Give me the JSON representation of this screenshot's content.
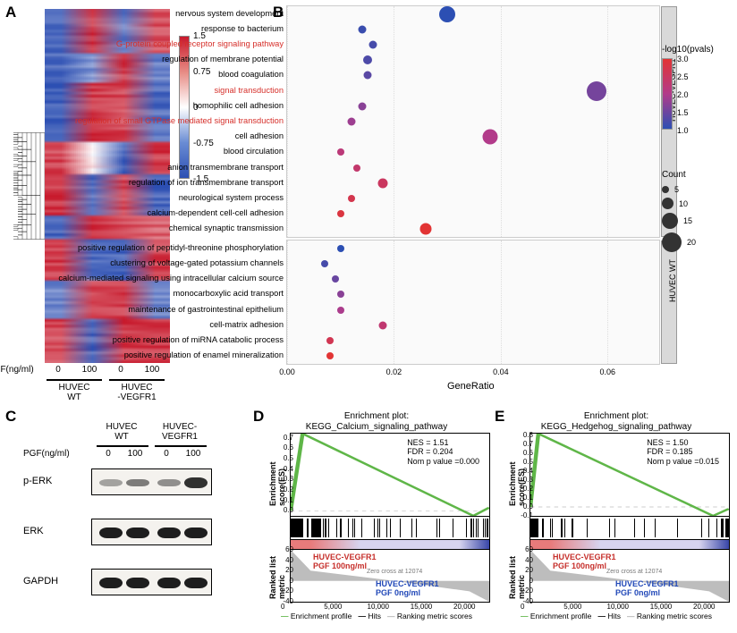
{
  "panels": {
    "A": "A",
    "B": "B",
    "C": "C",
    "D": "D",
    "E": "E"
  },
  "heatmap": {
    "type": "heatmap",
    "rows": 120,
    "columns": 4,
    "column_groups": [
      "HUVEC\nWT",
      "HUVEC\n-VEGFR1"
    ],
    "column_sub": [
      "0",
      "100",
      "0",
      "100"
    ],
    "x_label_prefix": "PGF(ng/ml)",
    "color_low": "#2c4fb3",
    "color_mid": "#ffffff",
    "color_high": "#c8192c",
    "legend_ticks": [
      "-1.5",
      "-0.75",
      "0",
      "0.75",
      "1.5"
    ],
    "blocks": [
      {
        "rows": [
          0,
          15
        ],
        "vals": [
          -1.2,
          1.3,
          -1.1,
          1.1
        ]
      },
      {
        "rows": [
          15,
          25
        ],
        "vals": [
          -1.3,
          -0.9,
          1.3,
          -1.1
        ]
      },
      {
        "rows": [
          25,
          45
        ],
        "vals": [
          -1.3,
          1.3,
          1.2,
          -1.2
        ]
      },
      {
        "rows": [
          45,
          56
        ],
        "vals": [
          1.2,
          0.1,
          -1.3,
          1.3
        ]
      },
      {
        "rows": [
          56,
          70
        ],
        "vals": [
          1.3,
          -1.2,
          1.2,
          -1.3
        ]
      },
      {
        "rows": [
          70,
          78
        ],
        "vals": [
          -1.3,
          1.3,
          1.2,
          1.0
        ]
      },
      {
        "rows": [
          78,
          92
        ],
        "vals": [
          1.3,
          -1.2,
          -1.3,
          1.2
        ]
      },
      {
        "rows": [
          92,
          105
        ],
        "vals": [
          -1.0,
          1.2,
          1.3,
          -1.0
        ]
      },
      {
        "rows": [
          105,
          120
        ],
        "vals": [
          1.2,
          -1.3,
          1.3,
          1.3
        ]
      }
    ],
    "dendro_seed": 7
  },
  "dotplot": {
    "type": "dotplot",
    "xlim": [
      0.0,
      0.07
    ],
    "xticks": [
      0.0,
      0.02,
      0.04,
      0.06
    ],
    "xlabel": "GeneRatio",
    "color_scale": {
      "low": "#2c4fb3",
      "mid": "#b23b8a",
      "high": "#e23434",
      "title": "-log10(pvals)",
      "ticks": [
        "1.0",
        "1.5",
        "2.0",
        "2.5",
        "3.0"
      ]
    },
    "count_legend": {
      "title": "Count",
      "values": [
        5,
        10,
        15,
        20
      ],
      "radii": [
        4,
        6.5,
        9,
        11
      ]
    },
    "groups": [
      {
        "name": "HUVEC-VEGFR1",
        "terms": [
          {
            "label": "nervous system development",
            "x": 0.03,
            "count": 15,
            "pval": 1.0,
            "hl": false
          },
          {
            "label": "response to bacterium",
            "x": 0.014,
            "count": 6,
            "pval": 1.1,
            "hl": false
          },
          {
            "label": "G-protein coupled receptor signaling pathway",
            "x": 0.016,
            "count": 6,
            "pval": 1.2,
            "hl": true
          },
          {
            "label": "regulation of membrane potential",
            "x": 0.015,
            "count": 7,
            "pval": 1.25,
            "hl": false
          },
          {
            "label": "blood coagulation",
            "x": 0.015,
            "count": 6,
            "pval": 1.35,
            "hl": false
          },
          {
            "label": "signal transduction",
            "x": 0.058,
            "count": 20,
            "pval": 1.55,
            "hl": true
          },
          {
            "label": "homophilic cell adhesion",
            "x": 0.014,
            "count": 6,
            "pval": 1.7,
            "hl": false
          },
          {
            "label": "regulation of small GTPase mediated signal transduction",
            "x": 0.012,
            "count": 6,
            "pval": 1.85,
            "hl": true
          },
          {
            "label": "cell adhesion",
            "x": 0.038,
            "count": 14,
            "pval": 2.0,
            "hl": false
          },
          {
            "label": "blood circulation",
            "x": 0.01,
            "count": 5,
            "pval": 2.2,
            "hl": false
          },
          {
            "label": "anion transmembrane transport",
            "x": 0.013,
            "count": 5,
            "pval": 2.35,
            "hl": false
          },
          {
            "label": "regulation of ion transmembrane transport",
            "x": 0.018,
            "count": 8,
            "pval": 2.5,
            "hl": false
          },
          {
            "label": "neurological system process",
            "x": 0.012,
            "count": 5,
            "pval": 2.7,
            "hl": false
          },
          {
            "label": "calcium-dependent cell-cell adhesion",
            "x": 0.01,
            "count": 4,
            "pval": 2.85,
            "hl": false
          },
          {
            "label": "chemical synaptic transmission",
            "x": 0.026,
            "count": 10,
            "pval": 3.0,
            "hl": false
          }
        ]
      },
      {
        "name": "HUVEC WT",
        "terms": [
          {
            "label": "positive regulation of peptidyl-threonine phosphorylation",
            "x": 0.01,
            "count": 4,
            "pval": 1.0,
            "hl": false
          },
          {
            "label": "clustering of voltage-gated potassium channels",
            "x": 0.007,
            "count": 3,
            "pval": 1.2,
            "hl": false
          },
          {
            "label": "calcium-mediated signaling using intracellular calcium source",
            "x": 0.009,
            "count": 4,
            "pval": 1.45,
            "hl": false
          },
          {
            "label": "monocarboxylic acid transport",
            "x": 0.01,
            "count": 4,
            "pval": 1.7,
            "hl": false
          },
          {
            "label": "maintenance of gastrointestinal epithelium",
            "x": 0.01,
            "count": 4,
            "pval": 1.95,
            "hl": false
          },
          {
            "label": "cell-matrix adhesion",
            "x": 0.018,
            "count": 6,
            "pval": 2.3,
            "hl": false
          },
          {
            "label": "positive regulation of miRNA catabolic process",
            "x": 0.008,
            "count": 3,
            "pval": 2.65,
            "hl": false
          },
          {
            "label": "positive regulation of enamel mineralization",
            "x": 0.008,
            "count": 3,
            "pval": 3.0,
            "hl": false
          }
        ]
      }
    ]
  },
  "western": {
    "groups": [
      "HUVEC\nWT",
      "HUVEC-\nVEGFR1"
    ],
    "doses": [
      "0",
      "100",
      "0",
      "100"
    ],
    "dose_label": "PGF(ng/ml)",
    "rows": [
      {
        "name": "p-ERK",
        "lanes": [
          0.25,
          0.45,
          0.35,
          0.85
        ]
      },
      {
        "name": "ERK",
        "lanes": [
          0.95,
          0.95,
          0.95,
          0.95
        ]
      },
      {
        "name": "GAPDH",
        "lanes": [
          0.95,
          0.95,
          0.95,
          0.95
        ]
      }
    ],
    "band_color": "#1a1a1a",
    "box_bg": "#f4f2ee"
  },
  "gsea": {
    "xlim": [
      0,
      23000
    ],
    "xticks": [
      0,
      5000,
      10000,
      15000,
      20000
    ],
    "ylab_top": "Enrichment\nscore(ES)",
    "ylab_bot": "Ranked list\nmetric",
    "legend": {
      "profile": "Enrichment profile",
      "hits": "Hits",
      "rank": "Ranking metric scores"
    },
    "zero_cross": "Zero cross at 12074",
    "colors": {
      "profile": "#5fb648",
      "rank_pos": "#c62f2b",
      "rank_neg": "#2148b8",
      "grad_left": "#e87b7b",
      "grad_mid": "#d7d4ef",
      "grad_right": "#3846a8"
    },
    "rank_labels": {
      "pos": "HUVEC-VEGFR1\nPGF 100ng/ml",
      "neg": "HUVEC-VEGFR1\nPGF 0ng/ml"
    },
    "panels": [
      {
        "title": "Enrichment plot:\nKEGG_Calcium_signaling_pathway",
        "stats": {
          "NES": "1.51",
          "FDR": "0.204",
          "Nomp": "0.000"
        },
        "es_yticks": [
          "0.7",
          "0.6",
          "0.5",
          "0.4",
          "0.3",
          "0.2",
          "0.1",
          "0.0"
        ],
        "rank_yticks": [
          "60",
          "40",
          "20",
          "0",
          "-20",
          "-40"
        ],
        "peak": 0.74,
        "peak_at": 0.06,
        "tail": -0.05,
        "hits_density": [
          [
            0,
            0.06,
            45
          ],
          [
            0.06,
            0.2,
            30
          ],
          [
            0.2,
            0.55,
            15
          ],
          [
            0.55,
            0.9,
            6
          ],
          [
            0.9,
            1.0,
            10
          ]
        ]
      },
      {
        "title": "Enrichment plot:\nKEGG_Hedgehog_signaling_pathway",
        "stats": {
          "NES": "1.50",
          "FDR": "0.185",
          "Nomp": "0.015"
        },
        "es_yticks": [
          "0.8",
          "0.7",
          "0.6",
          "0.5",
          "0.4",
          "0.3",
          "0.2",
          "0.1",
          "0.0",
          "-0.1"
        ],
        "rank_yticks": [
          "60",
          "40",
          "20",
          "0",
          "-20",
          "-40"
        ],
        "peak": 0.82,
        "peak_at": 0.04,
        "tail": -0.1,
        "hits_density": [
          [
            0,
            0.04,
            20
          ],
          [
            0.04,
            0.3,
            10
          ],
          [
            0.3,
            0.7,
            5
          ],
          [
            0.7,
            0.95,
            4
          ],
          [
            0.95,
            1.0,
            8
          ]
        ]
      }
    ]
  }
}
